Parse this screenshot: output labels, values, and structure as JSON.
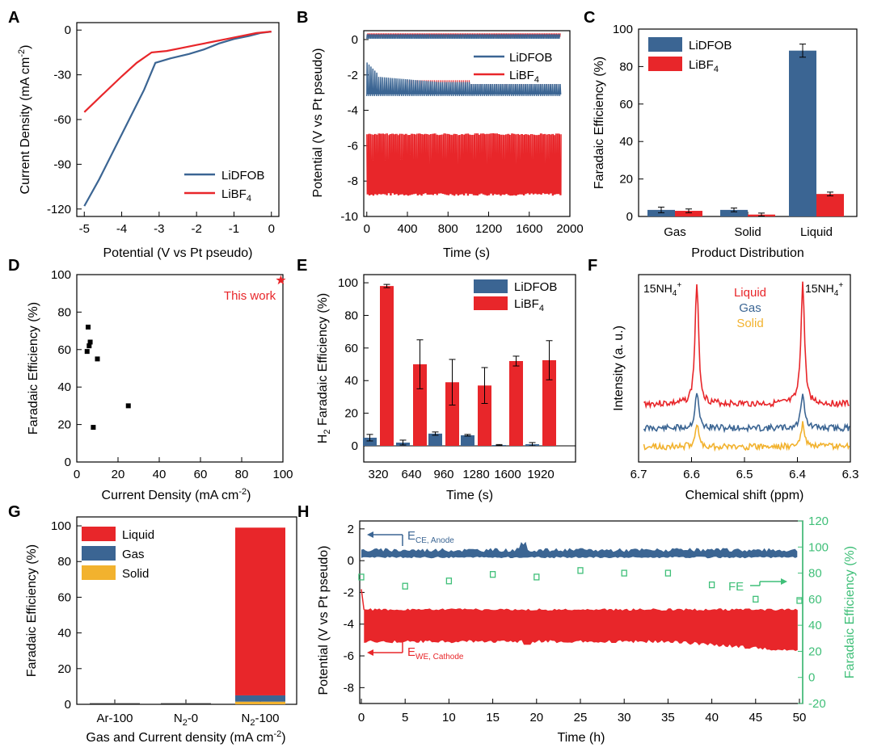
{
  "colors": {
    "blue": "#3b6593",
    "red": "#e8262a",
    "yellow": "#f2b22e",
    "green": "#3fbf78",
    "black": "#000000"
  },
  "panels": {
    "A": {
      "label": "A",
      "xlabel": "Potential (V vs Pt pseudo)",
      "ylabel": "Current Density (mA cm",
      "xticks": [
        "-5",
        "-4",
        "-3",
        "-2",
        "-1",
        "0"
      ],
      "yticks": [
        "0",
        "-30",
        "-60",
        "-90",
        "-120"
      ],
      "legend": [
        "LiDFOB",
        "LiBF"
      ]
    },
    "B": {
      "label": "B",
      "xlabel": "Time (s)",
      "ylabel": "Potential (V vs Pt pseudo)",
      "xticks": [
        "0",
        "400",
        "800",
        "1200",
        "1600",
        "2000"
      ],
      "yticks": [
        "0",
        "-2",
        "-4",
        "-6",
        "-8",
        "-10"
      ],
      "legend": [
        "LiDFOB",
        "LiBF"
      ]
    },
    "C": {
      "label": "C",
      "xlabel": "Product Distribution",
      "ylabel": "Faradaic Efficiency (%)",
      "xticks": [
        "Gas",
        "Solid",
        "Liquid"
      ],
      "yticks": [
        "0",
        "20",
        "40",
        "60",
        "80",
        "100"
      ],
      "legend": [
        "LiDFOB",
        "LiBF"
      ]
    },
    "D": {
      "label": "D",
      "xlabel": "Current Density (mA cm",
      "ylabel": "Faradaic Efficiency (%)",
      "xticks": [
        "0",
        "20",
        "40",
        "60",
        "80",
        "100"
      ],
      "yticks": [
        "0",
        "20",
        "40",
        "60",
        "80",
        "100"
      ],
      "annotation": "This work"
    },
    "E": {
      "label": "E",
      "xlabel": "Time (s)",
      "ylabel": "Faradaic Efficiency (%)",
      "ylabel_prefix": "H",
      "xticks": [
        "320",
        "640",
        "960",
        "1280",
        "1600",
        "1920"
      ],
      "yticks": [
        "0",
        "20",
        "40",
        "60",
        "80",
        "100"
      ],
      "legend": [
        "LiDFOB",
        "LiBF"
      ]
    },
    "F": {
      "label": "F",
      "xlabel": "Chemical shift (ppm)",
      "ylabel": "Intensity (a. u.)",
      "xticks": [
        "6.7",
        "6.6",
        "6.5",
        "6.4",
        "6.3"
      ],
      "peak_label": "15NH",
      "legend": [
        "Liquid",
        "Gas",
        "Solid"
      ]
    },
    "G": {
      "label": "G",
      "xlabel": "Gas and Current density (mA cm",
      "ylabel": "Faradaic Efficiency (%)",
      "xticks": [
        "Ar-100",
        "N",
        "N"
      ],
      "xticks_suffix": [
        "",
        "-0",
        "-100"
      ],
      "yticks": [
        "0",
        "20",
        "40",
        "60",
        "80",
        "100"
      ],
      "legend": [
        "Liquid",
        "Gas",
        "Solid"
      ]
    },
    "H": {
      "label": "H",
      "xlabel": "Time (h)",
      "ylabel_left": "Potential (V vs Pt pseudo)",
      "ylabel_right": "Faradaic Efficiency (%)",
      "xticks": [
        "0",
        "5",
        "10",
        "15",
        "20",
        "25",
        "30",
        "35",
        "40",
        "45",
        "50"
      ],
      "yticks_left": [
        "2",
        "0",
        "-2",
        "-4",
        "-6",
        "-8"
      ],
      "yticks_right": [
        "120",
        "100",
        "80",
        "60",
        "40",
        "20",
        "0",
        "-20"
      ],
      "anno_ce": "E",
      "anno_ce_sub": "CE, Anode",
      "anno_we": "E",
      "anno_we_sub": "WE, Cathode",
      "anno_fe": "FE"
    }
  },
  "chart_data": [
    {
      "panel": "A",
      "type": "line",
      "xlim": [
        -5.2,
        0.2
      ],
      "ylim": [
        -125,
        5
      ],
      "series": [
        {
          "name": "LiDFOB",
          "x": [
            -5.0,
            -4.6,
            -4.2,
            -3.8,
            -3.4,
            -3.1,
            -2.7,
            -2.2,
            -1.8,
            -1.4,
            -1.0,
            -0.6,
            -0.3,
            0.0
          ],
          "y": [
            -118,
            -100,
            -80,
            -60,
            -40,
            -22,
            -19,
            -16,
            -13,
            -9,
            -6,
            -4,
            -2,
            -1
          ]
        },
        {
          "name": "LiBF4",
          "x": [
            -5.0,
            -4.5,
            -4.0,
            -3.6,
            -3.2,
            -2.8,
            -2.4,
            -2.0,
            -1.6,
            -1.2,
            -0.8,
            -0.4,
            0.0
          ],
          "y": [
            -55,
            -43,
            -31,
            -22,
            -15,
            -14,
            -12,
            -10,
            -8,
            -6,
            -4,
            -2,
            -1
          ]
        }
      ]
    },
    {
      "panel": "B",
      "type": "line",
      "xlim": [
        -30,
        2000
      ],
      "ylim": [
        -10,
        0.5
      ],
      "series": [
        {
          "name": "LiDFOB",
          "anode_potential": 0.2,
          "cathode_band": [
            -2.8,
            -1.8
          ],
          "cycles_time": [
            0,
            1900
          ]
        },
        {
          "name": "LiBF4",
          "anode_potential": 0.3,
          "cathode_band": [
            -8.9,
            -5.2
          ],
          "cycles_time": [
            0,
            1900
          ]
        }
      ]
    },
    {
      "panel": "C",
      "type": "bar",
      "categories": [
        "Gas",
        "Solid",
        "Liquid"
      ],
      "ylim": [
        0,
        100
      ],
      "series": [
        {
          "name": "LiDFOB",
          "values": [
            3.5,
            3.5,
            88.5
          ],
          "errors": [
            1.5,
            1.0,
            3.5
          ]
        },
        {
          "name": "LiBF4",
          "values": [
            3,
            1,
            12
          ],
          "errors": [
            1.0,
            0.8,
            1.0
          ]
        }
      ]
    },
    {
      "panel": "D",
      "type": "scatter",
      "xlim": [
        0,
        100
      ],
      "ylim": [
        0,
        100
      ],
      "series": [
        {
          "x": [
            5,
            5.5,
            6,
            6.5,
            8,
            10,
            25
          ],
          "y": [
            59,
            72,
            62,
            64,
            18.5,
            55,
            30
          ]
        },
        {
          "x": [
            99
          ],
          "y": [
            97
          ],
          "marker": "star"
        }
      ]
    },
    {
      "panel": "E",
      "type": "bar",
      "categories": [
        "320",
        "640",
        "960",
        "1280",
        "1600",
        "1920"
      ],
      "ylim": [
        0,
        105
      ],
      "series": [
        {
          "name": "LiDFOB",
          "values": [
            5,
            2,
            7.5,
            6.5,
            0.5,
            1
          ],
          "errors": [
            2,
            1.5,
            1,
            0.5,
            0.3,
            1
          ]
        },
        {
          "name": "LiBF4",
          "values": [
            98,
            50,
            39,
            37,
            52,
            52.5
          ],
          "errors": [
            1,
            15,
            14,
            11,
            3,
            12
          ]
        }
      ]
    },
    {
      "panel": "F",
      "type": "line",
      "xlim": [
        6.7,
        6.3
      ],
      "peaks": [
        6.59,
        6.39
      ],
      "series": [
        {
          "name": "Liquid"
        },
        {
          "name": "Gas"
        },
        {
          "name": "Solid"
        }
      ]
    },
    {
      "panel": "G",
      "type": "bar",
      "categories": [
        "Ar-100",
        "N2-0",
        "N2-100"
      ],
      "ylim": [
        0,
        105
      ],
      "series": [
        {
          "name": "Solid",
          "values": [
            0,
            0,
            1.5
          ]
        },
        {
          "name": "Gas",
          "values": [
            0,
            0,
            3.5
          ]
        },
        {
          "name": "Liquid",
          "values": [
            0,
            0,
            94
          ]
        }
      ]
    },
    {
      "panel": "H",
      "type": "line",
      "xlim": [
        0,
        50
      ],
      "ylim": [
        -9,
        2.5
      ],
      "ylim_right": [
        -20,
        120
      ],
      "series": [
        {
          "name": "E CE, Anode",
          "mean": 0.5
        },
        {
          "name": "E WE, Cathode",
          "band": [
            -5.5,
            -3.0
          ]
        },
        {
          "name": "FE",
          "x": [
            0,
            5,
            10,
            15,
            20,
            25,
            30,
            35,
            40,
            45,
            50
          ],
          "y": [
            77,
            70,
            74,
            79,
            77,
            82,
            80,
            80,
            71,
            60,
            59
          ]
        }
      ]
    }
  ]
}
